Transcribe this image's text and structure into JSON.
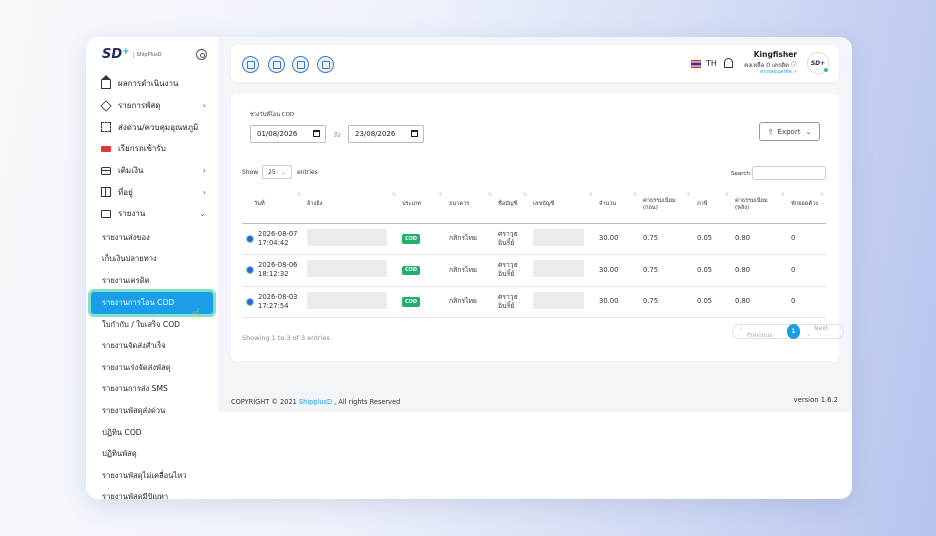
{
  "brand": {
    "logo": "SD",
    "logo_plus": "+",
    "name": "ShipPlusD"
  },
  "sidebar": {
    "items": [
      {
        "label": "ผลการดำเนินงาน",
        "icon": "home-icon",
        "chevron": false
      },
      {
        "label": "รายการพัสดุ",
        "icon": "box-icon",
        "chevron": true
      },
      {
        "label": "ส่งด่วน/ควบคุมอุณหภูมิ",
        "icon": "scan-icon",
        "chevron": false
      },
      {
        "label": "เรียกรถเข้ารับ",
        "icon": "truck-icon",
        "chevron": false
      },
      {
        "label": "เติมเงิน",
        "icon": "card-icon",
        "chevron": true
      },
      {
        "label": "ที่อยู่",
        "icon": "map-icon",
        "chevron": true
      },
      {
        "label": "รายงาน",
        "icon": "folder-icon",
        "chevron": true,
        "expanded": true
      }
    ],
    "subitems": [
      "รายงานส่งของ",
      "เก็บเงินปลายทาง",
      "รายงานเครดิต",
      "รายงานการโอน COD",
      "ใบกำกับ / ใบเสร็จ COD",
      "รายงานจัดส่งสำเร็จ",
      "รายงานเร่งจัดส่งพัสดุ",
      "รายงานการส่ง SMS",
      "รายงานพัสดุส่งด่วน",
      "ปฏิทิน COD",
      "ปฏิทินพัสดุ",
      "รายงานพัสดุไม่เคลื่อนไหว",
      "รายงานพัสดุมีปัญหา"
    ],
    "active_subitem": "รายงานการโอน COD"
  },
  "topbar": {
    "quick_icons": [
      "wallet-icon",
      "truck-icon",
      "package-icon",
      "document-icon"
    ],
    "language": "TH",
    "user_name": "Kingfisher",
    "credit_text": "คงเหลือ 0 เครดิต",
    "credit_link": "ตรวจสอบเครดิต",
    "avatar_text": "SD+"
  },
  "filter": {
    "label": "ช่วงวันที่โอน COD",
    "date_from": "01/08/2026",
    "to_label": "ถึง",
    "date_to": "23/08/2026",
    "export_label": "Export"
  },
  "table_controls": {
    "show_label": "Show",
    "page_size": "25",
    "entries_label": "entries",
    "search_label": "Search:"
  },
  "table": {
    "headers": [
      "วันที่",
      "อ้างอิง",
      "ประเภท",
      "ธนาคาร",
      "ชื่อบัญชี",
      "เลขบัญชี",
      "จำนวน",
      "ค่าธรรมเนียม (ก่อน)",
      "ภาษี",
      "ค่าธรรมเนียม (หลัง)",
      "หักยอดค้าง"
    ],
    "rows": [
      {
        "date": "2026-08-07",
        "time": "17:04:42",
        "type": "COD",
        "bank": "กสิกรไทย",
        "account_name": "ศราวุธ อินริ์ย์",
        "amount": "30.00",
        "fee_before": "0.75",
        "tax": "0.05",
        "fee_after": "0.80",
        "deduct": "0"
      },
      {
        "date": "2026-08-06",
        "time": "18:12:32",
        "type": "COD",
        "bank": "กสิกรไทย",
        "account_name": "ศราวุธ อินริ์ย์",
        "amount": "30.00",
        "fee_before": "0.75",
        "tax": "0.05",
        "fee_after": "0.80",
        "deduct": "0"
      },
      {
        "date": "2026-08-03",
        "time": "17:27:54",
        "type": "COD",
        "bank": "กสิกรไทย",
        "account_name": "ศราวุธ อินริ์ย์",
        "amount": "30.00",
        "fee_before": "0.75",
        "tax": "0.05",
        "fee_after": "0.80",
        "deduct": "0"
      }
    ]
  },
  "pagination": {
    "summary": "Showing 1 to 3 of 3 entries",
    "previous": "Previous",
    "current_page": "1",
    "next": "Next"
  },
  "footer": {
    "copyright": "COPYRIGHT © 2021",
    "company": "ShipplusD",
    "rights": ", All rights Reserved",
    "version": "version 1.6.2"
  }
}
